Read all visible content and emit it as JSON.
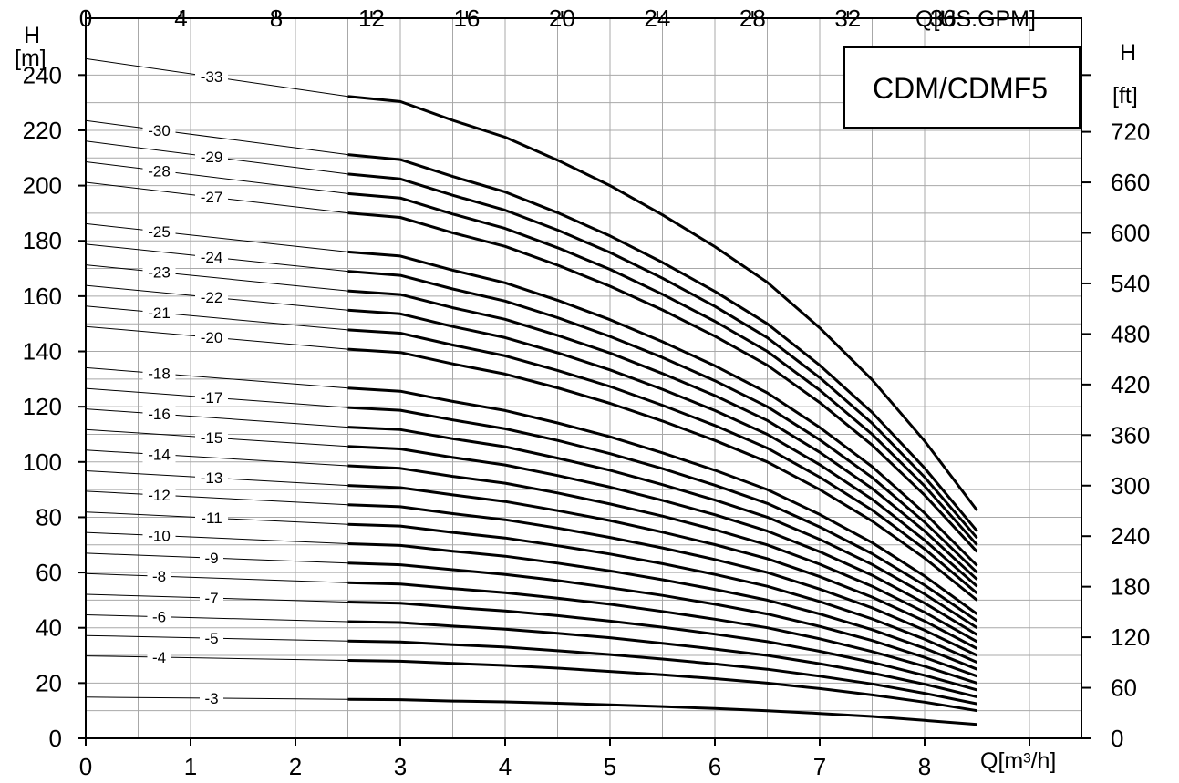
{
  "chart_data": {
    "type": "line",
    "title": "CDM/CDMF5",
    "x_axis_bottom": {
      "unit_label": "Q[m³/h]",
      "range": [
        0,
        9.5
      ],
      "ticks": [
        0,
        1,
        2,
        3,
        4,
        5,
        6,
        7,
        8,
        9
      ],
      "tick_labels": [
        "0",
        "1",
        "2",
        "3",
        "4",
        "5",
        "6",
        "7",
        "8"
      ]
    },
    "x_axis_top": {
      "unit_label": "Q[US.GPM]",
      "ticks": [
        0,
        4,
        8,
        12,
        16,
        20,
        24,
        28,
        32,
        36
      ],
      "tick_labels": [
        "0",
        "4",
        "8",
        "12",
        "16",
        "20",
        "24",
        "28",
        "32",
        "36"
      ]
    },
    "y_axis_left": {
      "unit_label_top": "H",
      "unit_label_bottom": "[m]",
      "range": [
        0,
        250
      ],
      "ticks": [
        0,
        20,
        40,
        60,
        80,
        100,
        120,
        140,
        160,
        180,
        200,
        220,
        240
      ],
      "tick_labels": [
        "0",
        "20",
        "40",
        "60",
        "80",
        "100",
        "120",
        "140",
        "160",
        "180",
        "200",
        "220",
        "240"
      ]
    },
    "y_axis_right": {
      "unit_label_top": "H",
      "unit_label_bottom": "[ft]",
      "ticks": [
        0,
        60,
        120,
        180,
        240,
        300,
        360,
        420,
        480,
        540,
        600,
        660,
        720
      ],
      "tick_labels": [
        "0",
        "60",
        "120",
        "180",
        "240",
        "300",
        "360",
        "420",
        "480",
        "540",
        "600",
        "660",
        "720"
      ]
    },
    "grid": true,
    "curve_x": [
      0,
      2.5,
      3,
      3.5,
      4,
      4.5,
      5,
      5.5,
      6,
      6.5,
      7,
      7.5,
      8,
      8.5
    ],
    "thin_range": [
      0,
      2.5
    ],
    "bold_range": [
      2.5,
      8.5
    ],
    "series": [
      {
        "name": "-3",
        "stages": 3,
        "label_left": false,
        "y": [
          14.9,
          14.1,
          14.0,
          13.5,
          13.2,
          12.7,
          12.1,
          11.5,
          10.8,
          10.0,
          9.0,
          7.9,
          6.5,
          5.0
        ]
      },
      {
        "name": "-4",
        "stages": 4,
        "label_left": true,
        "y": [
          29.8,
          28.2,
          27.9,
          27.1,
          26.4,
          25.4,
          24.2,
          23.0,
          21.6,
          20.0,
          18.0,
          15.7,
          13.1,
          10.0
        ]
      },
      {
        "name": "-5",
        "stages": 5,
        "label_left": false,
        "y": [
          37.2,
          35.2,
          34.9,
          33.9,
          33.0,
          31.7,
          30.3,
          28.7,
          26.9,
          25.0,
          22.5,
          19.7,
          16.3,
          12.5
        ]
      },
      {
        "name": "-6",
        "stages": 6,
        "label_left": true,
        "y": [
          44.7,
          42.2,
          41.9,
          40.6,
          39.5,
          38.0,
          36.4,
          34.4,
          32.3,
          30.0,
          27.0,
          23.6,
          19.6,
          15.0
        ]
      },
      {
        "name": "-7",
        "stages": 7,
        "label_left": false,
        "y": [
          52.1,
          49.3,
          48.9,
          47.4,
          46.1,
          44.4,
          42.4,
          40.2,
          37.7,
          35.0,
          31.5,
          27.5,
          22.8,
          17.5
        ]
      },
      {
        "name": "-8",
        "stages": 8,
        "label_left": true,
        "y": [
          59.6,
          56.3,
          55.8,
          54.2,
          52.7,
          50.7,
          48.5,
          45.9,
          43.1,
          40.0,
          36.0,
          31.4,
          26.1,
          20.0
        ]
      },
      {
        "name": "-9",
        "stages": 9,
        "label_left": false,
        "y": [
          67.0,
          63.4,
          62.8,
          61.0,
          59.3,
          57.1,
          54.5,
          51.7,
          48.5,
          45.0,
          40.5,
          35.4,
          29.3,
          22.5
        ]
      },
      {
        "name": "-10",
        "stages": 10,
        "label_left": true,
        "y": [
          74.5,
          70.4,
          69.8,
          67.7,
          65.9,
          63.4,
          60.6,
          57.4,
          53.9,
          50.0,
          45.0,
          39.3,
          32.6,
          25.0
        ]
      },
      {
        "name": "-11",
        "stages": 11,
        "label_left": false,
        "y": [
          81.9,
          77.4,
          76.8,
          74.5,
          72.5,
          69.7,
          66.7,
          63.2,
          59.3,
          55.0,
          49.5,
          43.2,
          35.9,
          27.5
        ]
      },
      {
        "name": "-12",
        "stages": 12,
        "label_left": true,
        "y": [
          89.4,
          84.5,
          83.8,
          81.3,
          79.1,
          76.1,
          72.7,
          68.9,
          64.7,
          60.0,
          54.0,
          47.2,
          39.1,
          30.0
        ]
      },
      {
        "name": "-13",
        "stages": 13,
        "label_left": false,
        "y": [
          96.8,
          91.5,
          90.7,
          88.1,
          85.7,
          82.4,
          78.8,
          74.6,
          70.1,
          65.0,
          58.5,
          51.1,
          42.4,
          32.5
        ]
      },
      {
        "name": "-14",
        "stages": 14,
        "label_left": true,
        "y": [
          104.3,
          98.6,
          97.7,
          94.8,
          92.3,
          88.8,
          84.8,
          80.4,
          75.5,
          70.0,
          63.0,
          55.0,
          45.6,
          35.0
        ]
      },
      {
        "name": "-15",
        "stages": 15,
        "label_left": false,
        "y": [
          111.7,
          105.6,
          104.7,
          101.6,
          98.9,
          95.1,
          90.9,
          86.1,
          80.9,
          75.0,
          67.5,
          59.0,
          48.9,
          37.5
        ]
      },
      {
        "name": "-16",
        "stages": 16,
        "label_left": true,
        "y": [
          119.2,
          112.6,
          111.7,
          108.4,
          105.5,
          101.4,
          97.0,
          91.8,
          86.2,
          80.0,
          72.0,
          62.9,
          52.2,
          40.0
        ]
      },
      {
        "name": "-17",
        "stages": 17,
        "label_left": false,
        "y": [
          126.6,
          119.7,
          118.7,
          115.2,
          112.0,
          107.8,
          103.0,
          97.6,
          91.6,
          85.0,
          76.5,
          66.8,
          55.4,
          42.5
        ]
      },
      {
        "name": "-18",
        "stages": 18,
        "label_left": true,
        "y": [
          134.1,
          126.7,
          125.6,
          121.9,
          118.6,
          114.1,
          109.1,
          103.3,
          97.0,
          90.0,
          81.0,
          70.8,
          58.7,
          45.0
        ]
      },
      {
        "name": "-20",
        "stages": 20,
        "label_left": false,
        "y": [
          149.0,
          140.8,
          139.6,
          135.5,
          131.8,
          126.8,
          121.2,
          114.8,
          107.8,
          100.0,
          90.0,
          78.6,
          65.2,
          50.0
        ]
      },
      {
        "name": "-21",
        "stages": 21,
        "label_left": true,
        "y": [
          156.4,
          147.8,
          146.6,
          142.3,
          138.4,
          133.1,
          127.3,
          120.5,
          113.2,
          105.0,
          94.5,
          82.6,
          68.5,
          52.5
        ]
      },
      {
        "name": "-22",
        "stages": 22,
        "label_left": false,
        "y": [
          163.9,
          154.9,
          153.6,
          149.0,
          145.0,
          139.5,
          133.3,
          126.3,
          118.6,
          110.0,
          99.0,
          86.5,
          71.7,
          55.0
        ]
      },
      {
        "name": "-23",
        "stages": 23,
        "label_left": true,
        "y": [
          171.3,
          161.9,
          160.6,
          155.8,
          151.6,
          145.8,
          139.4,
          132.0,
          124.0,
          115.0,
          103.5,
          90.4,
          75.0,
          57.5
        ]
      },
      {
        "name": "-24",
        "stages": 24,
        "label_left": false,
        "y": [
          178.8,
          169.0,
          167.5,
          162.6,
          158.2,
          152.2,
          145.4,
          137.8,
          129.4,
          120.0,
          108.0,
          94.4,
          78.2,
          60.0
        ]
      },
      {
        "name": "-25",
        "stages": 25,
        "label_left": true,
        "y": [
          186.2,
          176.0,
          174.5,
          169.4,
          164.8,
          158.5,
          151.5,
          143.5,
          134.8,
          125.0,
          112.5,
          98.3,
          81.5,
          62.5
        ]
      },
      {
        "name": "-27",
        "stages": 27,
        "label_left": false,
        "y": [
          201.2,
          190.1,
          188.5,
          182.9,
          178.0,
          171.2,
          163.6,
          155.0,
          145.5,
          135.0,
          121.5,
          106.1,
          88.0,
          67.5
        ]
      },
      {
        "name": "-28",
        "stages": 28,
        "label_left": true,
        "y": [
          208.6,
          197.1,
          195.5,
          189.7,
          184.5,
          177.5,
          169.7,
          160.7,
          150.9,
          140.0,
          126.0,
          110.0,
          91.3,
          70.0
        ]
      },
      {
        "name": "-29",
        "stages": 29,
        "label_left": false,
        "y": [
          216.1,
          204.2,
          202.4,
          196.5,
          191.1,
          183.9,
          175.8,
          166.5,
          156.3,
          145.0,
          130.5,
          114.0,
          94.5,
          72.5
        ]
      },
      {
        "name": "-30",
        "stages": 30,
        "label_left": true,
        "y": [
          223.5,
          211.2,
          209.4,
          203.3,
          197.7,
          190.2,
          181.8,
          172.2,
          161.7,
          150.0,
          135.0,
          117.9,
          97.8,
          75.0
        ]
      },
      {
        "name": "-33",
        "stages": 33,
        "label_left": false,
        "y": [
          245.9,
          232.3,
          230.4,
          223.6,
          217.5,
          209.2,
          200.0,
          189.4,
          177.9,
          165.0,
          148.5,
          129.7,
          107.6,
          82.5
        ]
      }
    ]
  }
}
